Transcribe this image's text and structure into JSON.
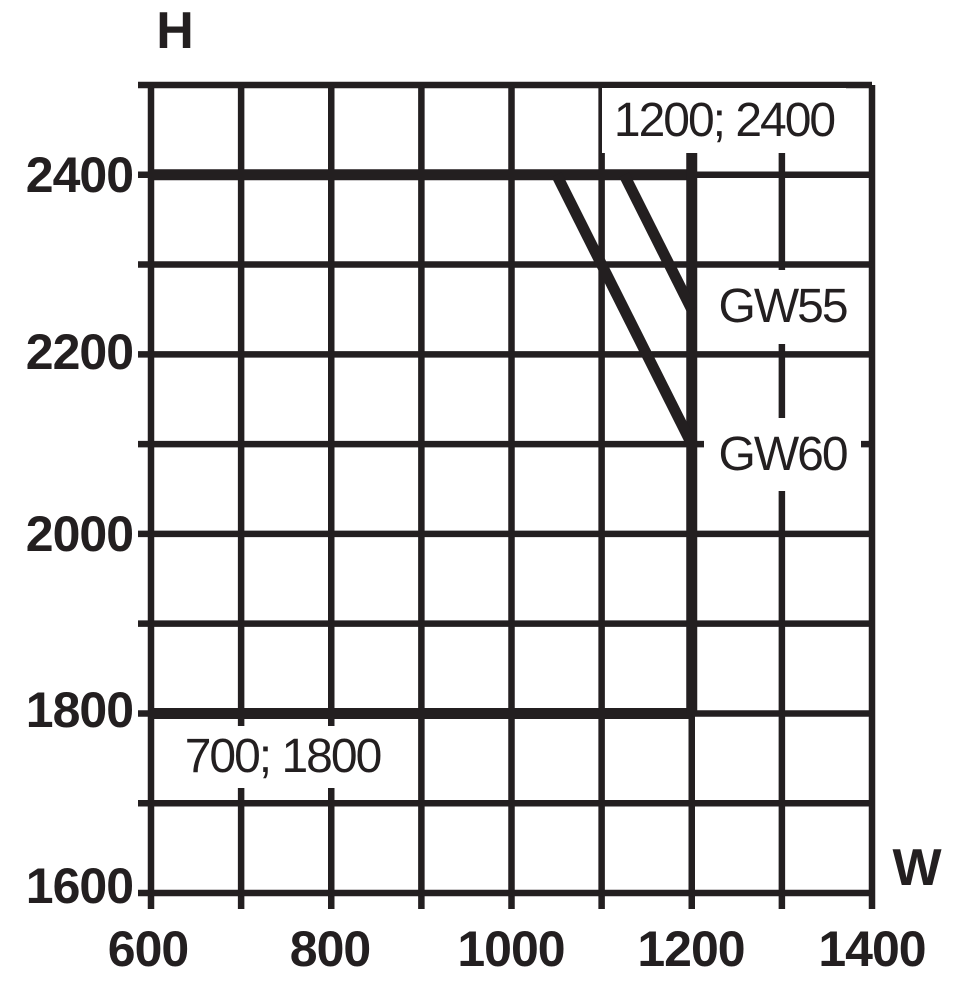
{
  "colors": {
    "ink": "#231f20",
    "background": "#ffffff",
    "label_background": "#ffffff"
  },
  "axes": {
    "y_symbol": "H",
    "x_symbol": "W"
  },
  "chart_data": {
    "type": "line",
    "title": "",
    "xlabel": "W",
    "ylabel": "H",
    "xlim": [
      600,
      1400
    ],
    "ylim": [
      1600,
      2500
    ],
    "grid": true,
    "grid_step": 100,
    "x_gridlines": [
      600,
      700,
      800,
      900,
      1000,
      1100,
      1200,
      1300,
      1400
    ],
    "y_gridlines": [
      1600,
      1700,
      1800,
      1900,
      2000,
      2100,
      2200,
      2300,
      2400,
      2500
    ],
    "x_ticks_labeled": [
      "600",
      "800",
      "1000",
      "1200",
      "1400"
    ],
    "y_ticks_labeled": [
      "2400",
      "2200",
      "2000",
      "1800",
      "1600"
    ],
    "boundary_segments": [
      {
        "name": "max-height-line",
        "x1": 600,
        "y1": 2400,
        "x2": 1200,
        "y2": 2400
      },
      {
        "name": "min-height-line",
        "x1": 600,
        "y1": 1800,
        "x2": 1200,
        "y2": 1800
      },
      {
        "name": "max-width-line",
        "x1": 1200,
        "y1": 2500,
        "x2": 1200,
        "y2": 1800
      },
      {
        "name": "gw55-limit-line",
        "x1": 1125,
        "y1": 2400,
        "x2": 1200,
        "y2": 2250
      },
      {
        "name": "gw60-limit-line",
        "x1": 1050,
        "y1": 2400,
        "x2": 1200,
        "y2": 2100
      }
    ],
    "series": [
      {
        "name": "GW55",
        "points": [
          [
            1125,
            2400
          ],
          [
            1200,
            2250
          ]
        ]
      },
      {
        "name": "GW60",
        "points": [
          [
            1050,
            2400
          ],
          [
            1200,
            2100
          ]
        ]
      }
    ],
    "callouts": [
      {
        "text": "1200; 2400",
        "point_x": 1200,
        "point_y": 2400
      },
      {
        "text": "GW55"
      },
      {
        "text": "GW60"
      },
      {
        "text": "700; 1800",
        "point_x": 700,
        "point_y": 1800
      }
    ]
  }
}
